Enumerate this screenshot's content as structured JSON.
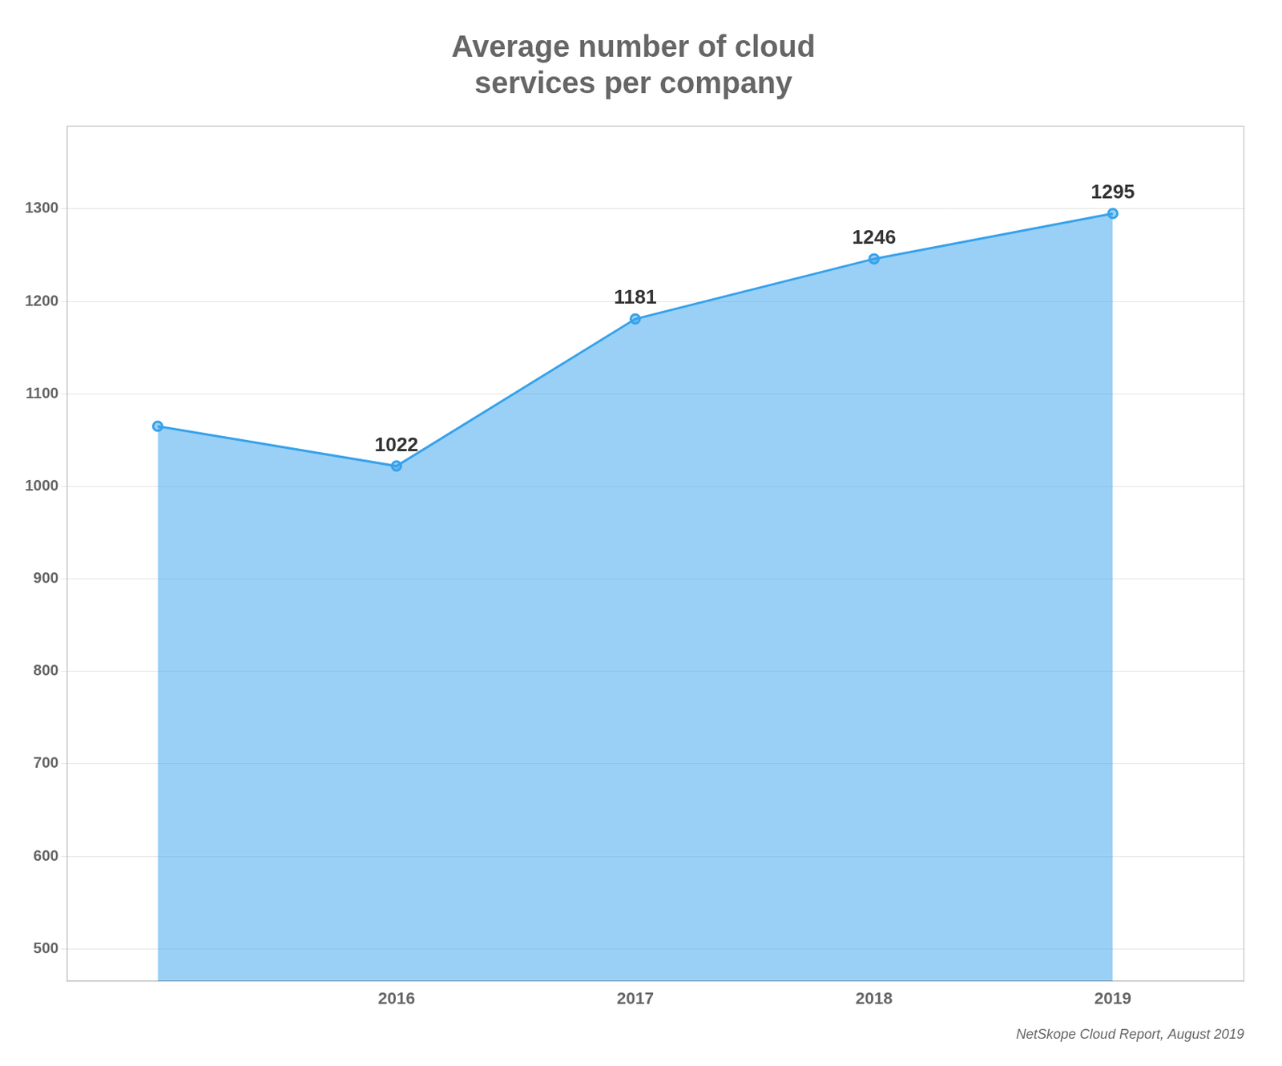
{
  "chart_data": {
    "type": "line",
    "title": [
      "Average number of cloud",
      "services per company"
    ],
    "annotations": [
      "NetSkope Cloud Report, August 2019"
    ],
    "x": [
      2015,
      2016,
      2017,
      2018,
      2019
    ],
    "values": [
      1065,
      1022,
      1181,
      1246,
      1295
    ],
    "value_labels": [
      null,
      "1022",
      "1181",
      "1246",
      "1295"
    ],
    "xlim": [
      2014.62,
      2019.55
    ],
    "xticks": [
      2016,
      2017,
      2018,
      2019
    ],
    "ylim": [
      465,
      1390
    ],
    "yticks": [
      500,
      600,
      700,
      800,
      900,
      1000,
      1100,
      1200,
      1300
    ],
    "grid": "y"
  }
}
